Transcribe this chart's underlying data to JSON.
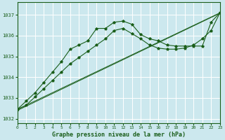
{
  "title": "Graphe pression niveau de la mer (hPa)",
  "bg_color": "#cce8ee",
  "grid_color": "#ffffff",
  "line_color": "#1a5e1a",
  "xlim": [
    0,
    23
  ],
  "ylim": [
    1031.8,
    1037.6
  ],
  "yticks": [
    1032,
    1033,
    1034,
    1035,
    1036,
    1037
  ],
  "xticks": [
    0,
    1,
    2,
    3,
    4,
    5,
    6,
    7,
    8,
    9,
    10,
    11,
    12,
    13,
    14,
    15,
    16,
    17,
    18,
    19,
    20,
    21,
    22,
    23
  ],
  "series_wavy_x": [
    0,
    1,
    2,
    3,
    4,
    5,
    6,
    7,
    8,
    9,
    10,
    11,
    12,
    13,
    14,
    15,
    16,
    17,
    18,
    19,
    20,
    21,
    22,
    23
  ],
  "series_wavy_y": [
    1032.45,
    1032.85,
    1033.25,
    1033.75,
    1034.25,
    1034.75,
    1035.35,
    1035.55,
    1035.75,
    1036.35,
    1036.35,
    1036.65,
    1036.7,
    1036.55,
    1036.05,
    1035.85,
    1035.75,
    1035.55,
    1035.5,
    1035.5,
    1035.5,
    1035.5,
    1036.65,
    1037.1
  ],
  "series_trend1_x": [
    0,
    23
  ],
  "series_trend1_y": [
    1032.45,
    1037.1
  ],
  "series_trend2_x": [
    0,
    23
  ],
  "series_trend2_y": [
    1032.45,
    1037.1
  ],
  "series_marked_x": [
    0,
    1,
    2,
    3,
    4,
    5,
    6,
    7,
    8,
    9,
    10,
    11,
    12,
    13,
    14,
    15,
    16,
    17,
    18,
    19,
    20,
    21,
    22,
    23
  ],
  "series_marked_y": [
    1032.45,
    1032.65,
    1033.05,
    1033.45,
    1033.85,
    1034.25,
    1034.65,
    1034.95,
    1035.25,
    1035.55,
    1035.85,
    1036.25,
    1036.35,
    1036.1,
    1035.85,
    1035.55,
    1035.4,
    1035.35,
    1035.35,
    1035.4,
    1035.55,
    1035.85,
    1036.25,
    1037.1
  ]
}
